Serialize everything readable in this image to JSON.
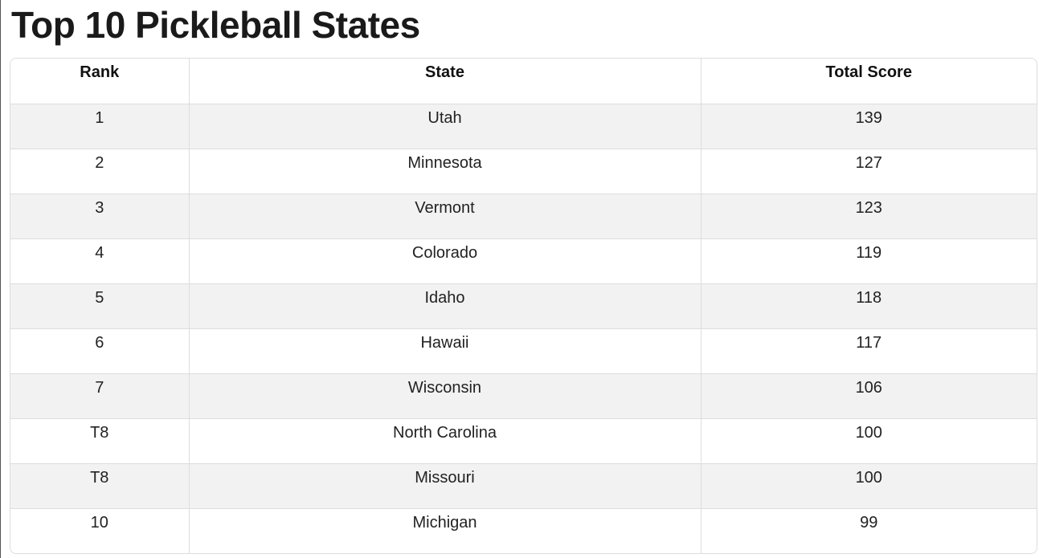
{
  "title": "Top 10 Pickleball States",
  "table": {
    "header": [
      "Rank",
      "State",
      "Total Score"
    ],
    "rows": [
      [
        "1",
        "Utah",
        139
      ],
      [
        "2",
        "Minnesota",
        127
      ],
      [
        "3",
        "Vermont",
        123
      ],
      [
        "4",
        "Colorado",
        119
      ],
      [
        "5",
        "Idaho",
        118
      ],
      [
        "6",
        "Hawaii",
        117
      ],
      [
        "7",
        "Wisconsin",
        106
      ],
      [
        "T8",
        "North Carolina",
        100
      ],
      [
        "T8",
        "Missouri",
        100
      ],
      [
        "10",
        "Michigan",
        99
      ]
    ]
  }
}
